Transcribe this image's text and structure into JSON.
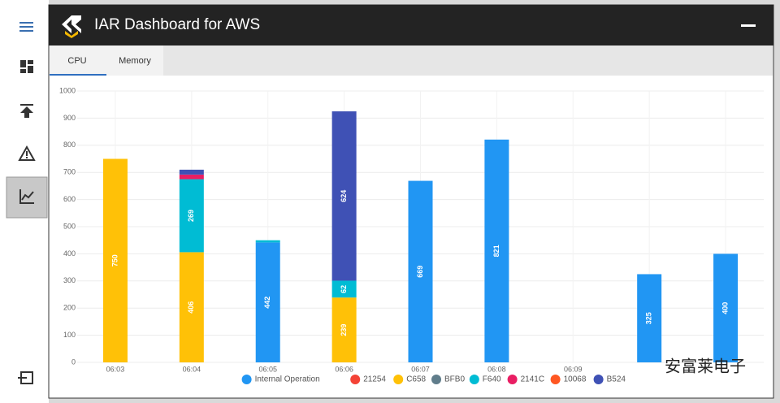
{
  "header": {
    "title": "IAR Dashboard for AWS"
  },
  "tabs": [
    "CPU",
    "Memory"
  ],
  "watermark": "安富莱电子",
  "chart_data": {
    "type": "stacked-bar",
    "categories": [
      "06:03",
      "06:04",
      "06:05",
      "06:06",
      "06:07",
      "06:08",
      "06:09",
      null,
      null
    ],
    "series": [
      {
        "name": "Internal Operation",
        "color": "#2196f3",
        "values": [
          null,
          null,
          442,
          null,
          669,
          821,
          null,
          325,
          400
        ]
      },
      {
        "name": "21254",
        "color": "#f44336",
        "values": [
          null,
          null,
          null,
          null,
          null,
          null,
          null,
          null,
          null
        ]
      },
      {
        "name": "C658",
        "color": "#ffc107",
        "values": [
          750,
          406,
          null,
          239,
          null,
          null,
          null,
          null,
          null
        ]
      },
      {
        "name": "BFB0",
        "color": "#607d8b",
        "values": [
          null,
          null,
          null,
          null,
          null,
          null,
          null,
          null,
          null
        ]
      },
      {
        "name": "F640",
        "color": "#00bcd4",
        "values": [
          null,
          269,
          8,
          62,
          null,
          null,
          null,
          null,
          null
        ]
      },
      {
        "name": "2141C",
        "color": "#e91e63",
        "values": [
          null,
          17,
          null,
          null,
          null,
          null,
          null,
          null,
          null
        ]
      },
      {
        "name": "10068",
        "color": "#ff5722",
        "values": [
          null,
          null,
          null,
          null,
          null,
          null,
          null,
          null,
          null
        ]
      },
      {
        "name": "B524",
        "color": "#3f51b5",
        "values": [
          null,
          18,
          null,
          624,
          null,
          null,
          null,
          null,
          null
        ]
      }
    ],
    "ylim": [
      0,
      1000
    ],
    "yticks": [
      0,
      100,
      200,
      300,
      400,
      500,
      600,
      700,
      800,
      900,
      1000
    ],
    "grid": true
  }
}
